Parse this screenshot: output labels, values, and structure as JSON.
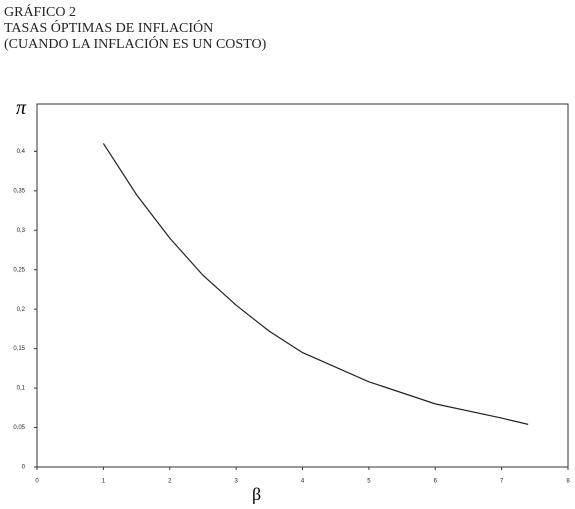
{
  "chart_data": {
    "type": "line",
    "title": [
      "GRÁFICO 2",
      "TASAS ÓPTIMAS DE INFLACIÓN",
      "(CUANDO LA INFLACIÓN ES UN COSTO)"
    ],
    "y_label": "π",
    "x_label": "β",
    "x": [
      1,
      1.5,
      2,
      2.5,
      3,
      3.5,
      4,
      5,
      6,
      7,
      7.4
    ],
    "series": [
      {
        "color": "#222222",
        "values": [
          0.41,
          0.345,
          0.29,
          0.243,
          0.205,
          0.172,
          0.145,
          0.108,
          0.08,
          0.062,
          0.054
        ]
      }
    ],
    "xlim": [
      0,
      8
    ],
    "xticks": [
      0,
      1,
      2,
      3,
      4,
      5,
      6,
      7,
      8
    ],
    "ylim": [
      0,
      0.46
    ],
    "yticks": [
      0,
      {
        "value": 0.05,
        "label": "0,05"
      },
      {
        "value": 0.1,
        "label": "0,1"
      },
      {
        "value": 0.15,
        "label": "0,15"
      },
      {
        "value": 0.2,
        "label": "0,2"
      },
      {
        "value": 0.25,
        "label": "0,25"
      },
      {
        "value": 0.3,
        "label": "0,3"
      },
      {
        "value": 0.35,
        "label": "0,35"
      },
      {
        "value": 0.4,
        "label": "0,4"
      }
    ]
  }
}
